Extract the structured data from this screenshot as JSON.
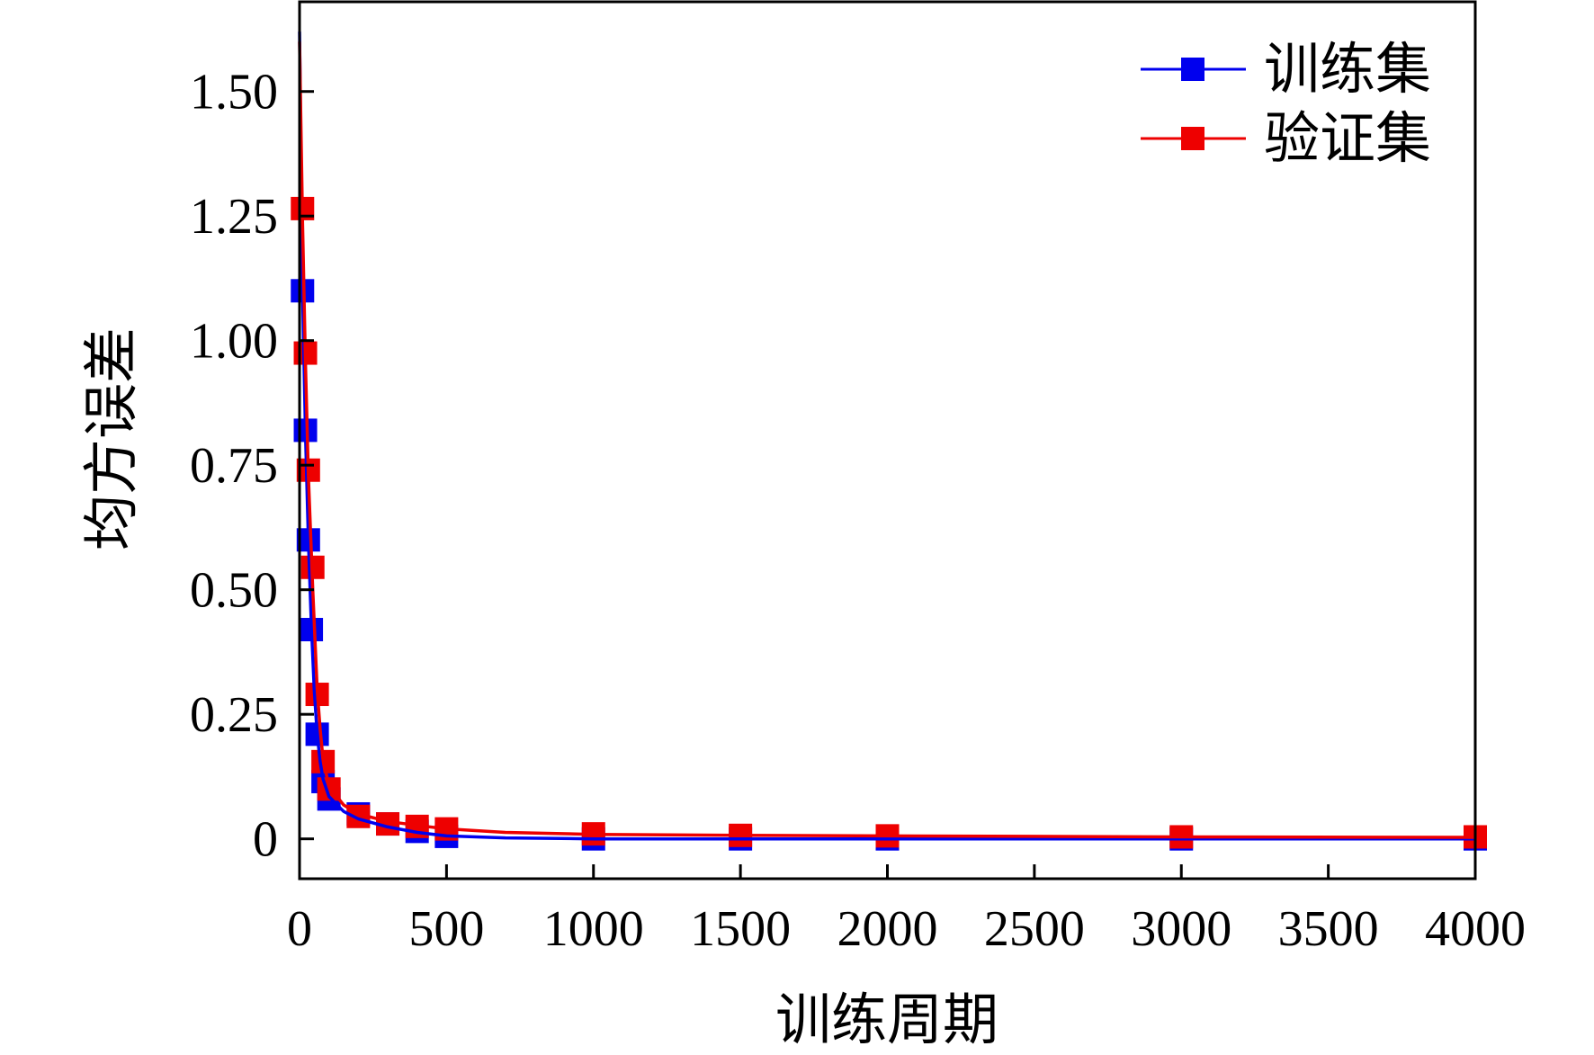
{
  "chart_data": {
    "type": "line",
    "title": "",
    "xlabel": "训练周期",
    "ylabel": "均方误差",
    "xlim": [
      0,
      4000
    ],
    "ylim": [
      -0.08,
      1.68
    ],
    "xticks": [
      0,
      500,
      1000,
      1500,
      2000,
      2500,
      3000,
      3500,
      4000
    ],
    "xtick_labels": [
      "0",
      "500",
      "1000",
      "1500",
      "2000",
      "2500",
      "3000",
      "3500",
      "4000"
    ],
    "yticks": [
      0,
      0.25,
      0.5,
      0.75,
      1.0,
      1.25,
      1.5
    ],
    "ytick_labels": [
      "0",
      "0.25",
      "0.50",
      "0.75",
      "1.00",
      "1.25",
      "1.50"
    ],
    "grid": false,
    "legend_position": "top-right",
    "series": [
      {
        "name": "训练集",
        "color": "#0000ee",
        "marker": "square",
        "markers": [
          {
            "x": 10,
            "y": 1.1
          },
          {
            "x": 20,
            "y": 0.82
          },
          {
            "x": 30,
            "y": 0.6
          },
          {
            "x": 40,
            "y": 0.42
          },
          {
            "x": 60,
            "y": 0.21
          },
          {
            "x": 80,
            "y": 0.115
          },
          {
            "x": 100,
            "y": 0.08
          },
          {
            "x": 200,
            "y": 0.05
          },
          {
            "x": 300,
            "y": 0.03
          },
          {
            "x": 400,
            "y": 0.015
          },
          {
            "x": 500,
            "y": 0.005
          },
          {
            "x": 1000,
            "y": 0.0
          },
          {
            "x": 1500,
            "y": 0.0
          },
          {
            "x": 2000,
            "y": 0.0
          },
          {
            "x": 3000,
            "y": 0.0
          },
          {
            "x": 4000,
            "y": 0.0
          }
        ],
        "curve": [
          {
            "x": 0,
            "y": 1.62
          },
          {
            "x": 10,
            "y": 1.1
          },
          {
            "x": 20,
            "y": 0.82
          },
          {
            "x": 30,
            "y": 0.6
          },
          {
            "x": 40,
            "y": 0.43
          },
          {
            "x": 50,
            "y": 0.3
          },
          {
            "x": 60,
            "y": 0.21
          },
          {
            "x": 70,
            "y": 0.155
          },
          {
            "x": 80,
            "y": 0.12
          },
          {
            "x": 100,
            "y": 0.085
          },
          {
            "x": 150,
            "y": 0.055
          },
          {
            "x": 200,
            "y": 0.04
          },
          {
            "x": 300,
            "y": 0.024
          },
          {
            "x": 400,
            "y": 0.013
          },
          {
            "x": 500,
            "y": 0.006
          },
          {
            "x": 700,
            "y": 0.002
          },
          {
            "x": 1000,
            "y": 0.0
          },
          {
            "x": 1500,
            "y": 0.0
          },
          {
            "x": 2000,
            "y": 0.0
          },
          {
            "x": 3000,
            "y": 0.0
          },
          {
            "x": 4000,
            "y": 0.0
          }
        ]
      },
      {
        "name": "验证集",
        "color": "#ee0000",
        "marker": "square",
        "markers": [
          {
            "x": 10,
            "y": 1.265
          },
          {
            "x": 20,
            "y": 0.975
          },
          {
            "x": 30,
            "y": 0.74
          },
          {
            "x": 45,
            "y": 0.545
          },
          {
            "x": 60,
            "y": 0.29
          },
          {
            "x": 80,
            "y": 0.155
          },
          {
            "x": 100,
            "y": 0.1
          },
          {
            "x": 200,
            "y": 0.045
          },
          {
            "x": 300,
            "y": 0.03
          },
          {
            "x": 400,
            "y": 0.025
          },
          {
            "x": 500,
            "y": 0.02
          },
          {
            "x": 1000,
            "y": 0.01
          },
          {
            "x": 1500,
            "y": 0.007
          },
          {
            "x": 2000,
            "y": 0.006
          },
          {
            "x": 3000,
            "y": 0.004
          },
          {
            "x": 4000,
            "y": 0.004
          }
        ],
        "curve": [
          {
            "x": 0,
            "y": 1.6
          },
          {
            "x": 10,
            "y": 1.24
          },
          {
            "x": 20,
            "y": 0.96
          },
          {
            "x": 30,
            "y": 0.73
          },
          {
            "x": 45,
            "y": 0.5
          },
          {
            "x": 60,
            "y": 0.3
          },
          {
            "x": 70,
            "y": 0.22
          },
          {
            "x": 80,
            "y": 0.16
          },
          {
            "x": 100,
            "y": 0.105
          },
          {
            "x": 150,
            "y": 0.068
          },
          {
            "x": 200,
            "y": 0.05
          },
          {
            "x": 300,
            "y": 0.035
          },
          {
            "x": 400,
            "y": 0.027
          },
          {
            "x": 500,
            "y": 0.02
          },
          {
            "x": 700,
            "y": 0.013
          },
          {
            "x": 1000,
            "y": 0.009
          },
          {
            "x": 1500,
            "y": 0.007
          },
          {
            "x": 2000,
            "y": 0.006
          },
          {
            "x": 3000,
            "y": 0.004
          },
          {
            "x": 4000,
            "y": 0.003
          }
        ]
      }
    ]
  }
}
